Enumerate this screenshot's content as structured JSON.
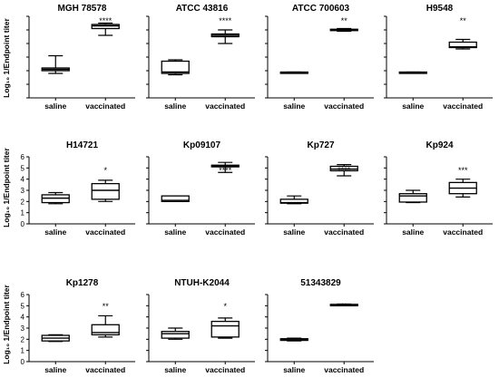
{
  "figure": {
    "ylabel": "Log₁₀ 1/Endpoint titer"
  },
  "chart_data": [
    {
      "type": "box",
      "title": "MGH 78578",
      "categories": [
        "saline",
        "vaccinated"
      ],
      "ylim": [
        0,
        6
      ],
      "yticks": [
        0,
        1,
        2,
        3,
        4,
        5,
        6
      ],
      "show_tick_labels": false,
      "significance": "****",
      "boxes": [
        {
          "min": 1.8,
          "q1": 2.0,
          "median": 2.1,
          "q3": 2.2,
          "max": 3.1
        },
        {
          "min": 4.6,
          "q1": 5.1,
          "median": 5.3,
          "q3": 5.4,
          "max": 5.5
        }
      ]
    },
    {
      "type": "box",
      "title": "ATCC 43816",
      "categories": [
        "saline",
        "vaccinated"
      ],
      "ylim": [
        0,
        6
      ],
      "yticks": [
        0,
        1,
        2,
        3,
        4,
        5,
        6
      ],
      "show_tick_labels": false,
      "significance": "****",
      "boxes": [
        {
          "min": 1.7,
          "q1": 1.8,
          "median": 1.9,
          "q3": 2.7,
          "max": 2.8
        },
        {
          "min": 4.0,
          "q1": 4.5,
          "median": 4.6,
          "q3": 4.7,
          "max": 5.0
        }
      ]
    },
    {
      "type": "box",
      "title": "ATCC 700603",
      "categories": [
        "saline",
        "vaccinated"
      ],
      "ylim": [
        0,
        6
      ],
      "yticks": [
        0,
        1,
        2,
        3,
        4,
        5,
        6
      ],
      "show_tick_labels": false,
      "significance": "**",
      "boxes": [
        {
          "min": 1.85,
          "q1": 1.85,
          "median": 1.88,
          "q3": 1.9,
          "max": 1.9
        },
        {
          "min": 4.9,
          "q1": 4.95,
          "median": 5.0,
          "q3": 5.05,
          "max": 5.1
        }
      ]
    },
    {
      "type": "box",
      "title": "H9548",
      "categories": [
        "saline",
        "vaccinated"
      ],
      "ylim": [
        0,
        6
      ],
      "yticks": [
        0,
        1,
        2,
        3,
        4,
        5,
        6
      ],
      "show_tick_labels": false,
      "significance": "**",
      "boxes": [
        {
          "min": 1.85,
          "q1": 1.85,
          "median": 1.88,
          "q3": 1.9,
          "max": 1.9
        },
        {
          "min": 3.6,
          "q1": 3.7,
          "median": 3.75,
          "q3": 4.1,
          "max": 4.3
        }
      ]
    },
    {
      "type": "box",
      "title": "H14721",
      "categories": [
        "saline",
        "vaccinated"
      ],
      "ylim": [
        0,
        6
      ],
      "yticks": [
        0,
        1,
        2,
        3,
        4,
        5,
        6
      ],
      "show_tick_labels": true,
      "significance": "*",
      "boxes": [
        {
          "min": 1.8,
          "q1": 1.9,
          "median": 2.3,
          "q3": 2.6,
          "max": 2.8
        },
        {
          "min": 2.0,
          "q1": 2.2,
          "median": 3.0,
          "q3": 3.6,
          "max": 3.9
        }
      ]
    },
    {
      "type": "box",
      "title": "Kp09107",
      "categories": [
        "saline",
        "vaccinated"
      ],
      "ylim": [
        0,
        6
      ],
      "yticks": [
        0,
        1,
        2,
        3,
        4,
        5,
        6
      ],
      "show_tick_labels": false,
      "significance": "****",
      "boxes": [
        {
          "min": 2.0,
          "q1": 2.0,
          "median": 2.1,
          "q3": 2.5,
          "max": 2.5
        },
        {
          "min": 4.6,
          "q1": 5.1,
          "median": 5.2,
          "q3": 5.25,
          "max": 5.5
        }
      ]
    },
    {
      "type": "box",
      "title": "Kp727",
      "categories": [
        "saline",
        "vaccinated"
      ],
      "ylim": [
        0,
        6
      ],
      "yticks": [
        0,
        1,
        2,
        3,
        4,
        5,
        6
      ],
      "show_tick_labels": false,
      "significance": "****",
      "boxes": [
        {
          "min": 1.8,
          "q1": 1.85,
          "median": 1.9,
          "q3": 2.2,
          "max": 2.5
        },
        {
          "min": 4.3,
          "q1": 4.75,
          "median": 4.9,
          "q3": 5.15,
          "max": 5.3
        }
      ]
    },
    {
      "type": "box",
      "title": "Kp924",
      "categories": [
        "saline",
        "vaccinated"
      ],
      "ylim": [
        0,
        6
      ],
      "yticks": [
        0,
        1,
        2,
        3,
        4,
        5,
        6
      ],
      "show_tick_labels": false,
      "significance": "***",
      "boxes": [
        {
          "min": 1.9,
          "q1": 1.95,
          "median": 2.5,
          "q3": 2.7,
          "max": 3.0
        },
        {
          "min": 2.4,
          "q1": 2.7,
          "median": 3.2,
          "q3": 3.7,
          "max": 4.0
        }
      ]
    },
    {
      "type": "box",
      "title": "Kp1278",
      "categories": [
        "saline",
        "vaccinated"
      ],
      "ylim": [
        0,
        6
      ],
      "yticks": [
        0,
        1,
        2,
        3,
        4,
        5,
        6
      ],
      "show_tick_labels": true,
      "significance": "**",
      "boxes": [
        {
          "min": 1.8,
          "q1": 1.85,
          "median": 2.1,
          "q3": 2.35,
          "max": 2.4
        },
        {
          "min": 2.2,
          "q1": 2.4,
          "median": 2.6,
          "q3": 3.3,
          "max": 4.1
        }
      ]
    },
    {
      "type": "box",
      "title": "NTUH-K2044",
      "categories": [
        "saline",
        "vaccinated"
      ],
      "ylim": [
        0,
        6
      ],
      "yticks": [
        0,
        1,
        2,
        3,
        4,
        5,
        6
      ],
      "show_tick_labels": false,
      "significance": "*",
      "boxes": [
        {
          "min": 2.0,
          "q1": 2.1,
          "median": 2.5,
          "q3": 2.7,
          "max": 3.0
        },
        {
          "min": 2.1,
          "q1": 2.2,
          "median": 3.2,
          "q3": 3.6,
          "max": 3.9
        }
      ]
    },
    {
      "type": "box",
      "title": "51343829",
      "categories": [
        "saline",
        "vaccinated"
      ],
      "ylim": [
        0,
        6
      ],
      "yticks": [
        0,
        1,
        2,
        3,
        4,
        5,
        6
      ],
      "show_tick_labels": false,
      "significance": "**",
      "boxes": [
        {
          "min": 1.85,
          "q1": 1.9,
          "median": 1.95,
          "q3": 2.05,
          "max": 2.1
        },
        {
          "min": 5.05,
          "q1": 5.07,
          "median": 5.1,
          "q3": 5.12,
          "max": 5.15
        }
      ]
    }
  ]
}
